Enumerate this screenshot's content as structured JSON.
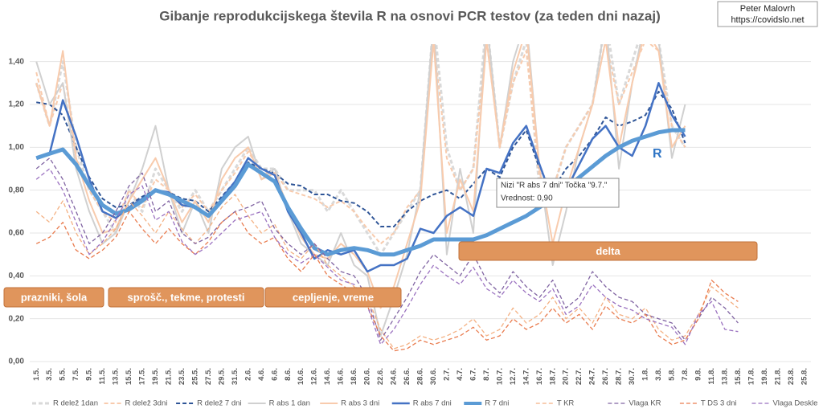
{
  "chart_data": {
    "type": "line",
    "title": "Gibanje reprodukcijskega števila R na osnovi PCR testov (za teden dni nazaj)",
    "author": "Peter Malovrh",
    "url": "https://covidslo.net",
    "categories": [
      "1.5.",
      "3.5.",
      "5.5.",
      "7.5.",
      "9.5.",
      "11.5.",
      "13.5.",
      "15.5.",
      "17.5.",
      "19.5.",
      "21.5.",
      "23.5.",
      "25.5.",
      "27.5.",
      "29.5.",
      "31.5.",
      "2.6.",
      "4.6.",
      "6.6.",
      "8.6.",
      "10.6.",
      "12.6.",
      "14.6.",
      "16.6.",
      "18.6.",
      "20.6.",
      "22.6.",
      "24.6.",
      "26.6.",
      "28.6.",
      "30.6.",
      "2.7.",
      "4.7.",
      "6.7.",
      "8.7.",
      "10.7.",
      "12.7.",
      "14.7.",
      "16.7.",
      "18.7.",
      "20.7.",
      "22.7.",
      "24.7.",
      "26.7.",
      "28.7.",
      "30.7.",
      "1.8.",
      "3.8.",
      "5.8.",
      "7.8.",
      "9.8.",
      "11.8.",
      "13.8.",
      "15.8.",
      "17.8.",
      "19.8.",
      "21.8.",
      "23.8.",
      "25.8."
    ],
    "ylim": [
      0,
      1.5
    ],
    "yticks": [
      {
        "value": 0,
        "label": "0,00"
      },
      {
        "value": 0.2,
        "label": "0,20"
      },
      {
        "value": 0.4,
        "label": "0,40"
      },
      {
        "value": 0.6,
        "label": "0,60"
      },
      {
        "value": 0.8,
        "label": "0,80"
      },
      {
        "value": 1,
        "label": "1,00"
      },
      {
        "value": 1.2,
        "label": "1,20"
      },
      {
        "value": 1.4,
        "label": "1,40"
      }
    ],
    "grid": true,
    "series": [
      {
        "name": "R delež 1dan",
        "color": "#d9d9d9",
        "dashed": true,
        "linewidth": 3,
        "values": [
          1.3,
          1.1,
          1.4,
          1.0,
          0.8,
          0.7,
          0.6,
          0.8,
          0.7,
          0.9,
          0.8,
          0.7,
          0.8,
          0.7,
          0.8,
          0.9,
          1.0,
          0.9,
          0.9,
          0.8,
          0.8,
          0.8,
          0.7,
          0.8,
          0.7,
          0.6,
          0.5,
          0.6,
          0.7,
          0.8,
          1.6,
          1.0,
          0.8,
          0.9,
          1.6,
          1.0,
          1.3,
          1.5,
          0.8,
          0.8,
          1.0,
          1.1,
          1.2,
          1.6,
          1.2,
          1.4,
          1.6,
          1.5,
          1.1,
          1.0,
          null,
          null,
          null,
          null,
          null,
          null,
          null,
          null,
          null
        ]
      },
      {
        "name": "R delež 3dni",
        "color": "#f8cbad",
        "dashed": true,
        "linewidth": 2,
        "values": [
          1.35,
          1.1,
          1.3,
          0.95,
          0.8,
          0.7,
          0.65,
          0.8,
          0.72,
          0.85,
          0.8,
          0.72,
          0.78,
          0.7,
          0.8,
          0.88,
          0.98,
          0.88,
          0.88,
          0.8,
          0.78,
          0.76,
          0.72,
          0.75,
          0.7,
          0.62,
          0.55,
          0.6,
          0.72,
          0.8,
          1.5,
          0.95,
          0.8,
          0.9,
          1.5,
          1.0,
          1.3,
          1.45,
          0.85,
          0.8,
          1.0,
          1.1,
          1.2,
          1.5,
          1.2,
          1.35,
          1.5,
          1.45,
          1.1,
          1.0,
          null,
          null,
          null,
          null,
          null,
          null,
          null,
          null,
          null
        ]
      },
      {
        "name": "R delež 7 dni",
        "color": "#2f5597",
        "dashed": true,
        "linewidth": 2,
        "values": [
          1.21,
          1.2,
          1.15,
          1.0,
          0.86,
          0.76,
          0.72,
          0.73,
          0.77,
          0.8,
          0.79,
          0.76,
          0.75,
          0.7,
          0.77,
          0.84,
          0.93,
          0.9,
          0.88,
          0.83,
          0.82,
          0.78,
          0.78,
          0.75,
          0.74,
          0.7,
          0.63,
          0.63,
          0.7,
          0.75,
          0.78,
          0.8,
          0.76,
          0.83,
          0.9,
          0.86,
          1.0,
          1.08,
          0.9,
          0.8,
          0.9,
          0.96,
          1.04,
          1.14,
          1.1,
          1.12,
          1.15,
          1.26,
          1.18,
          1.02,
          null,
          null,
          null,
          null,
          null,
          null,
          null,
          null,
          null
        ]
      },
      {
        "name": "R abs 1 dan",
        "color": "#d0d0d0",
        "dashed": false,
        "linewidth": 2,
        "values": [
          1.4,
          1.2,
          1.3,
          0.9,
          0.7,
          0.55,
          0.6,
          0.75,
          0.9,
          1.1,
          0.8,
          0.6,
          0.75,
          0.6,
          0.9,
          1.0,
          1.05,
          0.85,
          0.9,
          0.7,
          0.55,
          0.5,
          0.45,
          0.6,
          0.45,
          0.4,
          0.12,
          0.3,
          0.5,
          0.8,
          1.6,
          0.5,
          0.9,
          0.6,
          1.6,
          1.0,
          1.4,
          1.6,
          0.9,
          0.45,
          0.7,
          1.0,
          1.2,
          1.6,
          0.9,
          1.3,
          1.6,
          1.5,
          0.95,
          1.2,
          null,
          null,
          null,
          null,
          null,
          null,
          null,
          null,
          null
        ]
      },
      {
        "name": "R abs 3 dni",
        "color": "#f8cbad",
        "dashed": false,
        "linewidth": 2,
        "values": [
          1.3,
          1.1,
          1.45,
          0.95,
          0.75,
          0.6,
          0.62,
          0.75,
          0.85,
          0.95,
          0.8,
          0.65,
          0.75,
          0.65,
          0.85,
          0.95,
          1.0,
          0.85,
          0.88,
          0.72,
          0.58,
          0.5,
          0.48,
          0.55,
          0.5,
          0.42,
          0.25,
          0.35,
          0.55,
          0.75,
          1.5,
          0.6,
          0.85,
          0.7,
          1.5,
          1.0,
          1.35,
          1.55,
          0.9,
          0.55,
          0.8,
          1.0,
          1.2,
          1.5,
          1.0,
          1.3,
          1.55,
          1.45,
          1.0,
          1.1,
          null,
          null,
          null,
          null,
          null,
          null,
          null,
          null,
          null
        ]
      },
      {
        "name": "R abs 7 dni",
        "color": "#4472c4",
        "dashed": false,
        "linewidth": 2.5,
        "values": [
          0.95,
          0.97,
          1.22,
          1.05,
          0.85,
          0.7,
          0.67,
          0.72,
          0.76,
          0.8,
          0.79,
          0.73,
          0.72,
          0.68,
          0.76,
          0.84,
          0.95,
          0.9,
          0.87,
          0.7,
          0.6,
          0.48,
          0.52,
          0.5,
          0.52,
          0.42,
          0.45,
          0.45,
          0.48,
          0.62,
          0.6,
          0.68,
          0.72,
          0.68,
          0.9,
          0.88,
          1.02,
          1.1,
          0.92,
          0.75,
          0.8,
          0.92,
          1.04,
          1.1,
          1.0,
          0.96,
          1.1,
          1.3,
          1.15,
          1.05,
          null,
          null,
          null,
          null,
          null,
          null,
          null,
          null,
          null
        ]
      },
      {
        "name": "R 7 dni",
        "color": "#5b9bd5",
        "dashed": false,
        "linewidth": 5,
        "values": [
          0.95,
          0.97,
          0.99,
          0.92,
          0.82,
          0.73,
          0.69,
          0.71,
          0.75,
          0.8,
          0.78,
          0.75,
          0.72,
          0.68,
          0.75,
          0.82,
          0.92,
          0.88,
          0.84,
          0.72,
          0.62,
          0.53,
          0.5,
          0.52,
          0.53,
          0.52,
          0.5,
          0.5,
          0.52,
          0.54,
          0.57,
          0.57,
          0.57,
          0.57,
          0.59,
          0.62,
          0.65,
          0.68,
          0.72,
          0.76,
          0.81,
          0.86,
          0.91,
          0.96,
          1.0,
          1.03,
          1.05,
          1.07,
          1.08,
          1.08,
          null,
          null,
          null,
          null,
          null,
          null,
          null,
          null,
          null
        ]
      },
      {
        "name": "T KR",
        "color": "#f4b183",
        "dashed": true,
        "linewidth": 1.3,
        "values": [
          0.7,
          0.65,
          0.75,
          0.6,
          0.5,
          0.55,
          0.62,
          0.75,
          0.68,
          0.6,
          0.7,
          0.62,
          0.55,
          0.62,
          0.72,
          0.78,
          0.68,
          0.6,
          0.64,
          0.52,
          0.48,
          0.55,
          0.45,
          0.4,
          0.35,
          0.3,
          0.15,
          0.06,
          0.08,
          0.12,
          0.1,
          0.12,
          0.15,
          0.2,
          0.12,
          0.15,
          0.25,
          0.18,
          0.22,
          0.3,
          0.2,
          0.25,
          0.18,
          0.3,
          0.22,
          0.2,
          0.25,
          0.15,
          0.1,
          0.12,
          0.22,
          0.35,
          0.3,
          0.25,
          null,
          null,
          null,
          null,
          null
        ]
      },
      {
        "name": "Vlaga KR",
        "color": "#8064a2",
        "dashed": true,
        "linewidth": 1.3,
        "values": [
          0.9,
          0.95,
          0.85,
          0.7,
          0.55,
          0.6,
          0.7,
          0.82,
          0.88,
          0.7,
          0.75,
          0.6,
          0.55,
          0.58,
          0.65,
          0.7,
          0.72,
          0.75,
          0.62,
          0.55,
          0.5,
          0.55,
          0.48,
          0.42,
          0.4,
          0.3,
          0.1,
          0.2,
          0.3,
          0.42,
          0.5,
          0.45,
          0.4,
          0.5,
          0.38,
          0.32,
          0.42,
          0.35,
          0.3,
          0.38,
          0.25,
          0.3,
          0.42,
          0.35,
          0.3,
          0.28,
          0.22,
          0.2,
          0.18,
          0.1,
          0.2,
          0.3,
          0.25,
          0.18,
          null,
          null,
          null,
          null,
          null
        ]
      },
      {
        "name": "T DS 3 dni",
        "color": "#e97c4f",
        "dashed": true,
        "linewidth": 1.3,
        "values": [
          0.55,
          0.58,
          0.65,
          0.52,
          0.48,
          0.52,
          0.58,
          0.7,
          0.62,
          0.55,
          0.62,
          0.55,
          0.5,
          0.56,
          0.65,
          0.7,
          0.6,
          0.55,
          0.58,
          0.48,
          0.42,
          0.5,
          0.4,
          0.36,
          0.32,
          0.26,
          0.12,
          0.05,
          0.06,
          0.1,
          0.08,
          0.1,
          0.12,
          0.16,
          0.1,
          0.12,
          0.2,
          0.15,
          0.18,
          0.25,
          0.18,
          0.22,
          0.15,
          0.26,
          0.2,
          0.18,
          0.22,
          0.12,
          0.08,
          0.1,
          0.2,
          0.38,
          0.32,
          0.28,
          null,
          null,
          null,
          null,
          null
        ]
      },
      {
        "name": "Vlaga Deskle",
        "color": "#9b72c0",
        "dashed": true,
        "linewidth": 1.3,
        "values": [
          0.85,
          0.9,
          0.8,
          0.65,
          0.5,
          0.56,
          0.66,
          0.78,
          0.82,
          0.66,
          0.7,
          0.56,
          0.5,
          0.54,
          0.6,
          0.66,
          0.68,
          0.7,
          0.58,
          0.5,
          0.46,
          0.5,
          0.44,
          0.38,
          0.36,
          0.26,
          0.08,
          0.15,
          0.25,
          0.36,
          0.45,
          0.4,
          0.36,
          0.44,
          0.34,
          0.3,
          0.38,
          0.32,
          0.28,
          0.34,
          0.22,
          0.26,
          0.36,
          0.3,
          0.26,
          0.24,
          0.2,
          0.18,
          0.16,
          0.08,
          0.22,
          0.28,
          0.15,
          0.14,
          null,
          null,
          null,
          null,
          null
        ]
      }
    ],
    "annotations": [
      {
        "text": "prazniki, šola"
      },
      {
        "text": "sprošč., tekme, protesti"
      },
      {
        "text": "cepljenje, vreme"
      },
      {
        "text": "delta"
      }
    ],
    "series_label": "R",
    "tooltip": [
      "Nizi \"R abs 7 dni\" Točka \"9.7.\"",
      "Vrednost: 0,90"
    ]
  }
}
